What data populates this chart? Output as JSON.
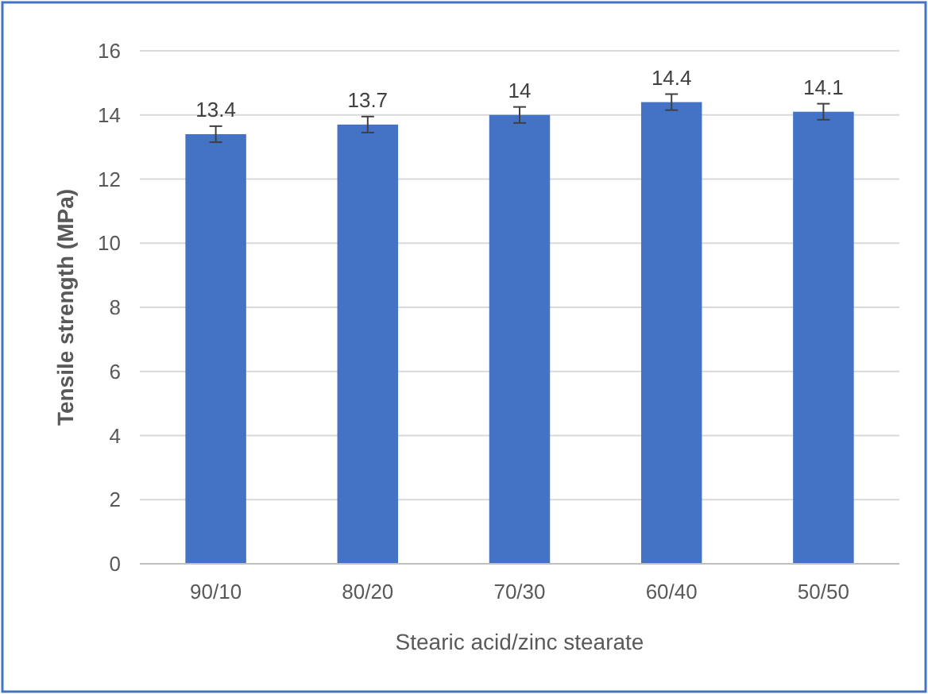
{
  "chart_data": {
    "type": "bar",
    "xlabel": "Stearic acid/zinc stearate",
    "ylabel": "Tensile strength (MPa)",
    "categories": [
      "90/10",
      "80/20",
      "70/30",
      "60/40",
      "50/50"
    ],
    "values": [
      13.4,
      13.7,
      14,
      14.4,
      14.1
    ],
    "errors": [
      0.25,
      0.25,
      0.25,
      0.25,
      0.25
    ],
    "color": "#4472c4",
    "ylim": [
      0,
      16
    ],
    "yticks": [
      0,
      2,
      4,
      6,
      8,
      10,
      12,
      14,
      16
    ],
    "grid": "y",
    "data_labels": true
  }
}
